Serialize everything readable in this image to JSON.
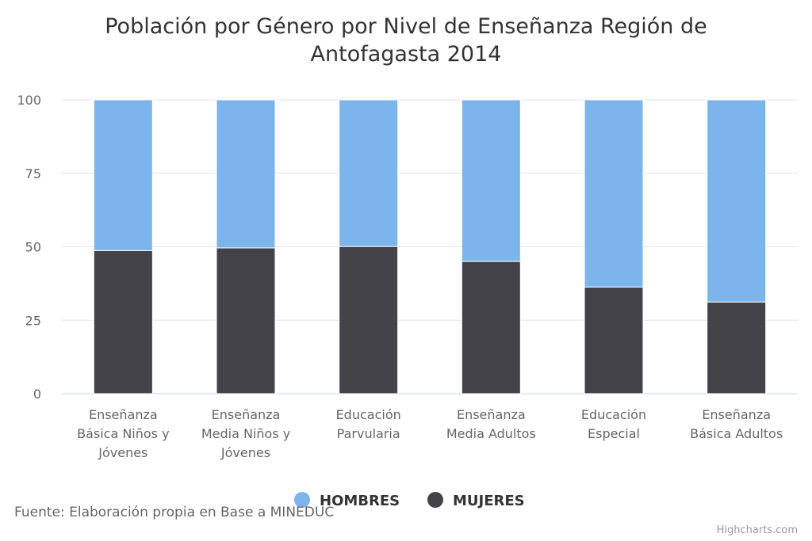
{
  "chart_data": {
    "type": "bar",
    "stacking": "percent",
    "title": "Población por Género por Nivel de Enseñanza Región de Antofagasta 2014",
    "title_lines": [
      "Población por Género por Nivel de Enseñanza Región de",
      "Antofagasta 2014"
    ],
    "categories": [
      [
        "Enseñanza",
        "Básica Niños y",
        "Jóvenes"
      ],
      [
        "Enseñanza",
        "Media Niños y",
        "Jóvenes"
      ],
      [
        "Educación",
        "Parvularia"
      ],
      [
        "Enseñanza",
        "Media Adultos"
      ],
      [
        "Educación",
        "Especial"
      ],
      [
        "Enseñanza",
        "Básica Adultos"
      ]
    ],
    "series": [
      {
        "name": "HOMBRES",
        "color": "#7cb5ec",
        "values": [
          51.3,
          50.4,
          49.9,
          55.0,
          63.7,
          68.8
        ]
      },
      {
        "name": "MUJERES",
        "color": "#434348",
        "values": [
          48.7,
          49.6,
          50.1,
          45.0,
          36.3,
          31.2
        ]
      }
    ],
    "ylim": [
      0,
      100
    ],
    "yticks": [
      "0",
      "25",
      "50",
      "75",
      "100"
    ],
    "grid": true,
    "legend_position": "bottom-center",
    "source": "Fuente: Elaboración propia en Base a MINEDUC",
    "credit": "Highcharts.com"
  }
}
